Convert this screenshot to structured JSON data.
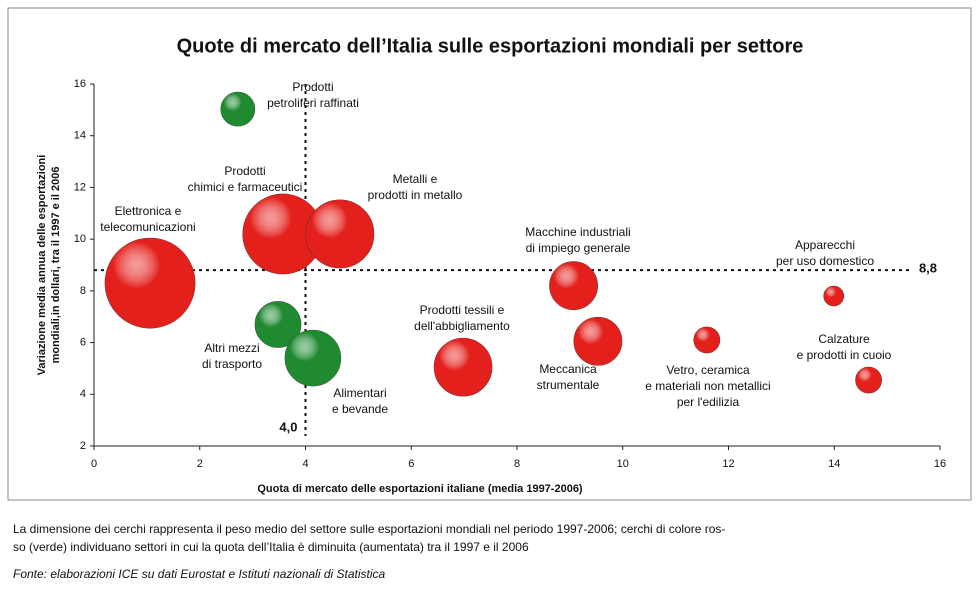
{
  "chart_data": {
    "type": "bubble",
    "title": "Quote di mercato dell’Italia sulle esportazioni mondiali per settore",
    "xlabel": "Quota di mercato delle esportazioni italiane (media 1997-2006)",
    "ylabel": [
      "Variazione media annua delle esportazioni",
      "mondiali,in dollari, tra il 1997 e il 2006"
    ],
    "xlim": [
      0,
      16
    ],
    "ylim": [
      2,
      16
    ],
    "xticks": [
      0,
      2,
      4,
      6,
      8,
      10,
      12,
      14,
      16
    ],
    "yticks": [
      2,
      4,
      6,
      8,
      10,
      12,
      14,
      16
    ],
    "reference_lines": {
      "x": {
        "value": 4,
        "label": "4,0"
      },
      "y": {
        "value": 8.8,
        "label": "8,8"
      }
    },
    "points": [
      {
        "label": [
          "Elettronica e",
          "telecomunicazioni"
        ],
        "x": 1.06,
        "y": 8.3,
        "size": 20.3,
        "color": "#e4201c"
      },
      {
        "label": [
          "Prodotti",
          "petroliferi raffinati"
        ],
        "x": 2.72,
        "y": 15.03,
        "size": 2.9,
        "color": "#1f8a30"
      },
      {
        "label": [
          "Prodotti",
          "chimici e farmaceutici"
        ],
        "x": 3.57,
        "y": 10.2,
        "size": 16,
        "color": "#e4201c"
      },
      {
        "label": [
          "Metalli e",
          "prodotti in metallo"
        ],
        "x": 4.65,
        "y": 10.2,
        "size": 11.6,
        "color": "#e4201c"
      },
      {
        "label": [
          "Altri mezzi",
          "di trasporto"
        ],
        "x": 3.48,
        "y": 6.7,
        "size": 5.3,
        "color": "#1f8a30"
      },
      {
        "label": [
          "Alimentari",
          "e bevande"
        ],
        "x": 4.14,
        "y": 5.4,
        "size": 7.8,
        "color": "#1f8a30"
      },
      {
        "label": [
          "Prodotti tessili e",
          "dell'abbigliamento"
        ],
        "x": 6.98,
        "y": 5.05,
        "size": 8.4,
        "color": "#e4201c"
      },
      {
        "label": [
          "Macchine industriali",
          "di impiego generale"
        ],
        "x": 9.07,
        "y": 8.2,
        "size": 5.8,
        "color": "#e4201c"
      },
      {
        "label": [
          "Meccanica",
          "strumentale"
        ],
        "x": 9.53,
        "y": 6.05,
        "size": 5.8,
        "color": "#e4201c"
      },
      {
        "label": [
          "Vetro, ceramica",
          "e materiali non metallici",
          "per l'edilizia"
        ],
        "x": 11.59,
        "y": 6.1,
        "size": 1.7,
        "color": "#e4201c"
      },
      {
        "label": [
          "Apparecchi",
          "per uso domestico"
        ],
        "x": 13.99,
        "y": 7.8,
        "size": 1.0,
        "color": "#e4201c"
      },
      {
        "label": [
          "Calzature",
          "e prodotti in cuoio"
        ],
        "x": 14.65,
        "y": 4.55,
        "size": 1.7,
        "color": "#e4201c"
      }
    ],
    "note": [
      "La dimensione dei cerchi rappresenta il peso medio del settore sulle esportazioni mondiali nel periodo 1997-2006; cerchi di colore ros-",
      "so (verde) individuano settori in cui la quota dell’Italia è diminuita (aumentata) tra il 1997 e il 2006"
    ],
    "source": "Fonte: elaborazioni ICE su dati Eurostat e Istituti nazionali di Statistica"
  }
}
